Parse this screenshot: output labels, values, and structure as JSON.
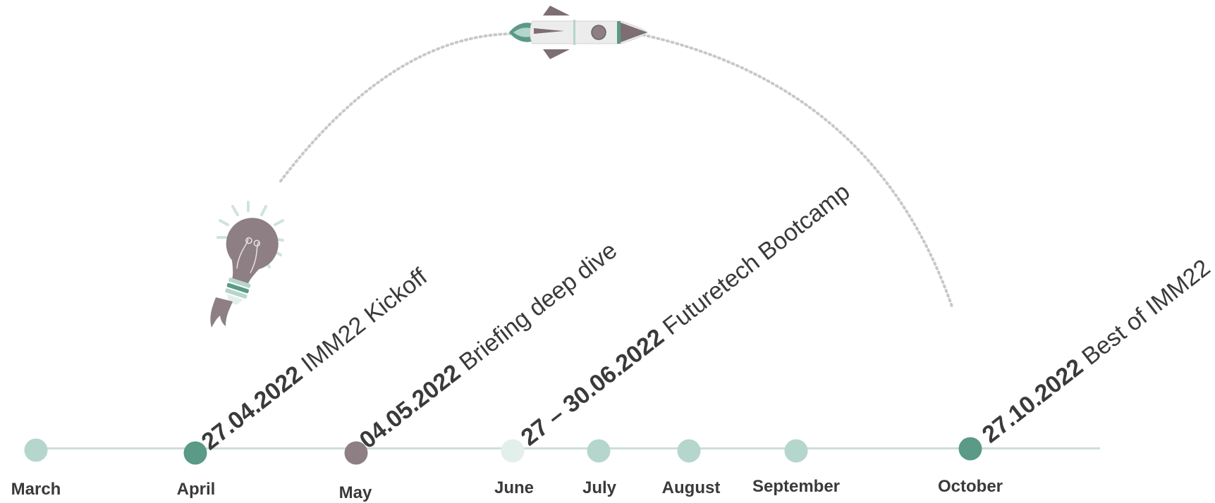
{
  "colors": {
    "line": "#cfdcdd",
    "text": "#3a3a3a",
    "dot_pale": "#b5d6cd",
    "dot_paler": "#e3efeb",
    "dot_accent": "#5a9a86",
    "dot_mauve": "#8e7f84"
  },
  "icons": [
    "lightbulb-rocket-icon",
    "rocket-icon"
  ],
  "months": [
    {
      "label": "March",
      "dot": "dot_pale"
    },
    {
      "label": "April",
      "dot": "dot_accent"
    },
    {
      "label": "May",
      "dot": "dot_mauve"
    },
    {
      "label": "June",
      "dot": "dot_paler"
    },
    {
      "label": "July",
      "dot": "dot_pale"
    },
    {
      "label": "August",
      "dot": "dot_pale"
    },
    {
      "label": "September",
      "dot": "dot_pale"
    },
    {
      "label": "October",
      "dot": "dot_accent"
    }
  ],
  "events": [
    {
      "date": "27.04.2022",
      "name": "IMM22 Kickoff"
    },
    {
      "date": "04.05.2022",
      "name": "Briefing deep dive"
    },
    {
      "date": "27 – 30.06.2022",
      "name": "Futuretech Bootcamp"
    },
    {
      "date": "27.10.2022",
      "name": "Best of IMM22"
    }
  ]
}
